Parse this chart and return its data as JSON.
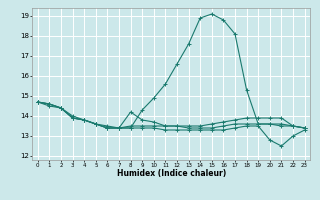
{
  "xlabel": "Humidex (Indice chaleur)",
  "xlim": [
    -0.5,
    23.5
  ],
  "ylim": [
    11.8,
    19.4
  ],
  "yticks": [
    12,
    13,
    14,
    15,
    16,
    17,
    18,
    19
  ],
  "xticks": [
    0,
    1,
    2,
    3,
    4,
    5,
    6,
    7,
    8,
    9,
    10,
    11,
    12,
    13,
    14,
    15,
    16,
    17,
    18,
    19,
    20,
    21,
    22,
    23
  ],
  "bg_color": "#cce8ea",
  "grid_color": "#ffffff",
  "line_color": "#1a7a6e",
  "lines": [
    [
      14.7,
      14.6,
      14.4,
      13.9,
      13.8,
      13.6,
      13.4,
      13.4,
      13.4,
      14.3,
      14.9,
      15.6,
      16.6,
      17.6,
      18.9,
      19.1,
      18.8,
      18.1,
      15.3,
      13.6,
      13.6,
      13.5,
      13.5,
      13.4
    ],
    [
      14.7,
      14.6,
      14.4,
      13.9,
      13.8,
      13.6,
      13.4,
      13.4,
      13.4,
      13.4,
      13.4,
      13.3,
      13.3,
      13.3,
      13.3,
      13.3,
      13.3,
      13.4,
      13.5,
      13.5,
      12.8,
      12.5,
      13.0,
      13.3
    ],
    [
      14.7,
      14.6,
      14.4,
      13.9,
      13.8,
      13.6,
      13.4,
      13.4,
      14.2,
      13.8,
      13.7,
      13.5,
      13.5,
      13.4,
      13.4,
      13.4,
      13.5,
      13.6,
      13.6,
      13.6,
      13.6,
      13.6,
      13.5,
      13.4
    ],
    [
      14.7,
      14.5,
      14.4,
      14.0,
      13.8,
      13.6,
      13.5,
      13.4,
      13.5,
      13.5,
      13.5,
      13.5,
      13.5,
      13.5,
      13.5,
      13.6,
      13.7,
      13.8,
      13.9,
      13.9,
      13.9,
      13.9,
      13.5,
      13.4
    ]
  ]
}
